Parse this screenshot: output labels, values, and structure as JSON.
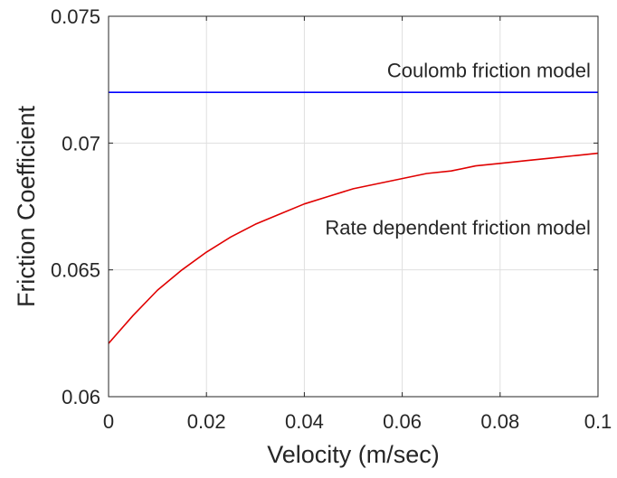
{
  "chart_data": {
    "type": "line",
    "title": "",
    "xlabel": "Velocity (m/sec)",
    "ylabel": "Friction Coefficient",
    "xlim": [
      0,
      0.1
    ],
    "ylim": [
      0.06,
      0.075
    ],
    "x_ticks": [
      0,
      0.02,
      0.04,
      0.06,
      0.08,
      0.1
    ],
    "x_tick_labels": [
      "0",
      "0.02",
      "0.04",
      "0.06",
      "0.08",
      "0.1"
    ],
    "y_ticks": [
      0.06,
      0.065,
      0.07,
      0.075
    ],
    "y_tick_labels": [
      "0.06",
      "0.065",
      "0.07",
      "0.075"
    ],
    "grid": true,
    "legend": "none",
    "series": [
      {
        "color": "#0000ff",
        "x": [
          0,
          0.1
        ],
        "y": [
          0.072,
          0.072
        ]
      },
      {
        "color": "#e00000",
        "x": [
          0,
          0.005,
          0.01,
          0.015,
          0.02,
          0.025,
          0.03,
          0.035,
          0.04,
          0.045,
          0.05,
          0.055,
          0.06,
          0.065,
          0.07,
          0.075,
          0.08,
          0.085,
          0.09,
          0.095,
          0.1
        ],
        "y": [
          0.0621,
          0.0632,
          0.0642,
          0.065,
          0.0657,
          0.0663,
          0.0668,
          0.0672,
          0.0676,
          0.0679,
          0.0682,
          0.0684,
          0.0686,
          0.0688,
          0.0689,
          0.0691,
          0.0692,
          0.0693,
          0.0694,
          0.0695,
          0.0696
        ]
      }
    ],
    "annotations": [
      {
        "text": "Coulomb friction model",
        "x": 0.0985,
        "y": 0.0726,
        "anchor": "end"
      },
      {
        "text": "Rate dependent friction model",
        "x": 0.0985,
        "y": 0.0664,
        "anchor": "end"
      }
    ]
  }
}
